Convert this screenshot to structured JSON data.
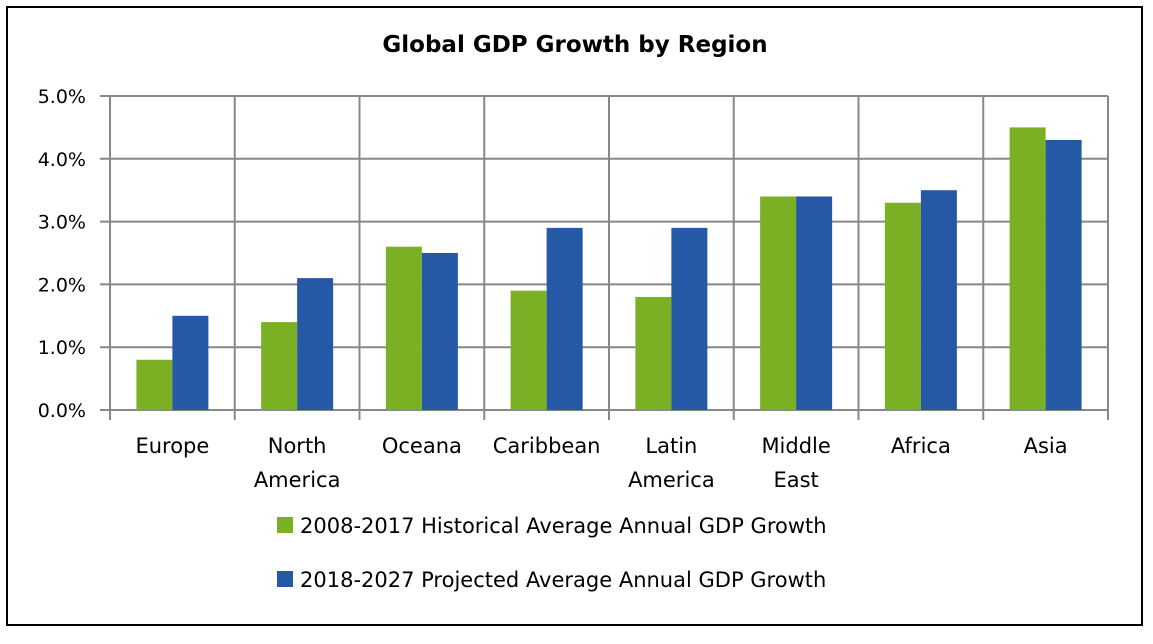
{
  "chart_data": {
    "type": "bar",
    "title": "Global GDP Growth by Region",
    "xlabel": "",
    "ylabel": "",
    "categories": [
      [
        "Europe"
      ],
      [
        "North",
        "America"
      ],
      [
        "Oceana"
      ],
      [
        "Caribbean"
      ],
      [
        "Latin",
        "America"
      ],
      [
        "Middle",
        "East"
      ],
      [
        "Africa"
      ],
      [
        "Asia"
      ]
    ],
    "ylim": [
      0,
      5
    ],
    "yticks": [
      "0.0%",
      "1.0%",
      "2.0%",
      "3.0%",
      "4.0%",
      "5.0%"
    ],
    "grid": true,
    "legend_position": "bottom",
    "series": [
      {
        "name": "2008-2017 Historical Average Annual GDP Growth",
        "color": "#7cb024",
        "values": [
          0.8,
          1.4,
          2.6,
          1.9,
          1.8,
          3.4,
          3.3,
          4.5
        ]
      },
      {
        "name": "2018-2027 Projected Average Annual GDP Growth",
        "color": "#2559a6",
        "values": [
          1.5,
          2.1,
          2.5,
          2.9,
          2.9,
          3.4,
          3.5,
          4.3
        ]
      }
    ]
  }
}
